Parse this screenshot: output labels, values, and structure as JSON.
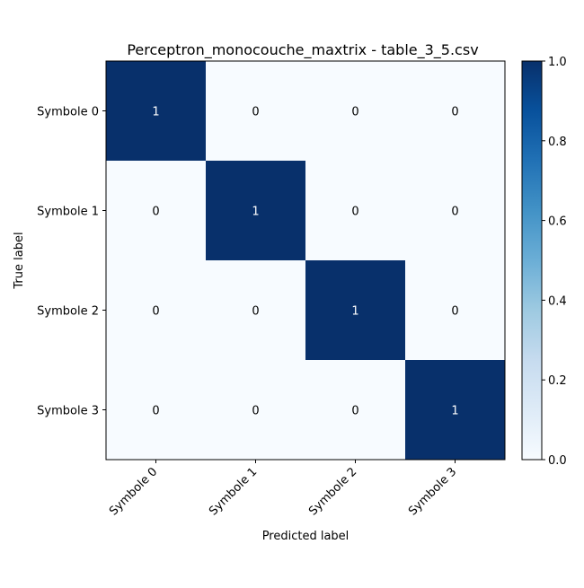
{
  "chart_data": {
    "type": "heatmap",
    "title": "Perceptron_monocouche_maxtrix - table_3_5.csv",
    "xlabel": "Predicted label",
    "ylabel": "True label",
    "x_categories": [
      "Symbole 0",
      "Symbole 1",
      "Symbole 2",
      "Symbole 3"
    ],
    "y_categories": [
      "Symbole 0",
      "Symbole 1",
      "Symbole 2",
      "Symbole 3"
    ],
    "values": [
      [
        1,
        0,
        0,
        0
      ],
      [
        0,
        1,
        0,
        0
      ],
      [
        0,
        0,
        1,
        0
      ],
      [
        0,
        0,
        0,
        1
      ]
    ],
    "colormap": "Blues",
    "color_low": "#f7fbff",
    "color_high": "#08306b",
    "colorbar": {
      "range": [
        0.0,
        1.0
      ],
      "ticks": [
        "0.0",
        "0.2",
        "0.4",
        "0.6",
        "0.8",
        "1.0"
      ],
      "placement": "right"
    },
    "grid": false
  }
}
